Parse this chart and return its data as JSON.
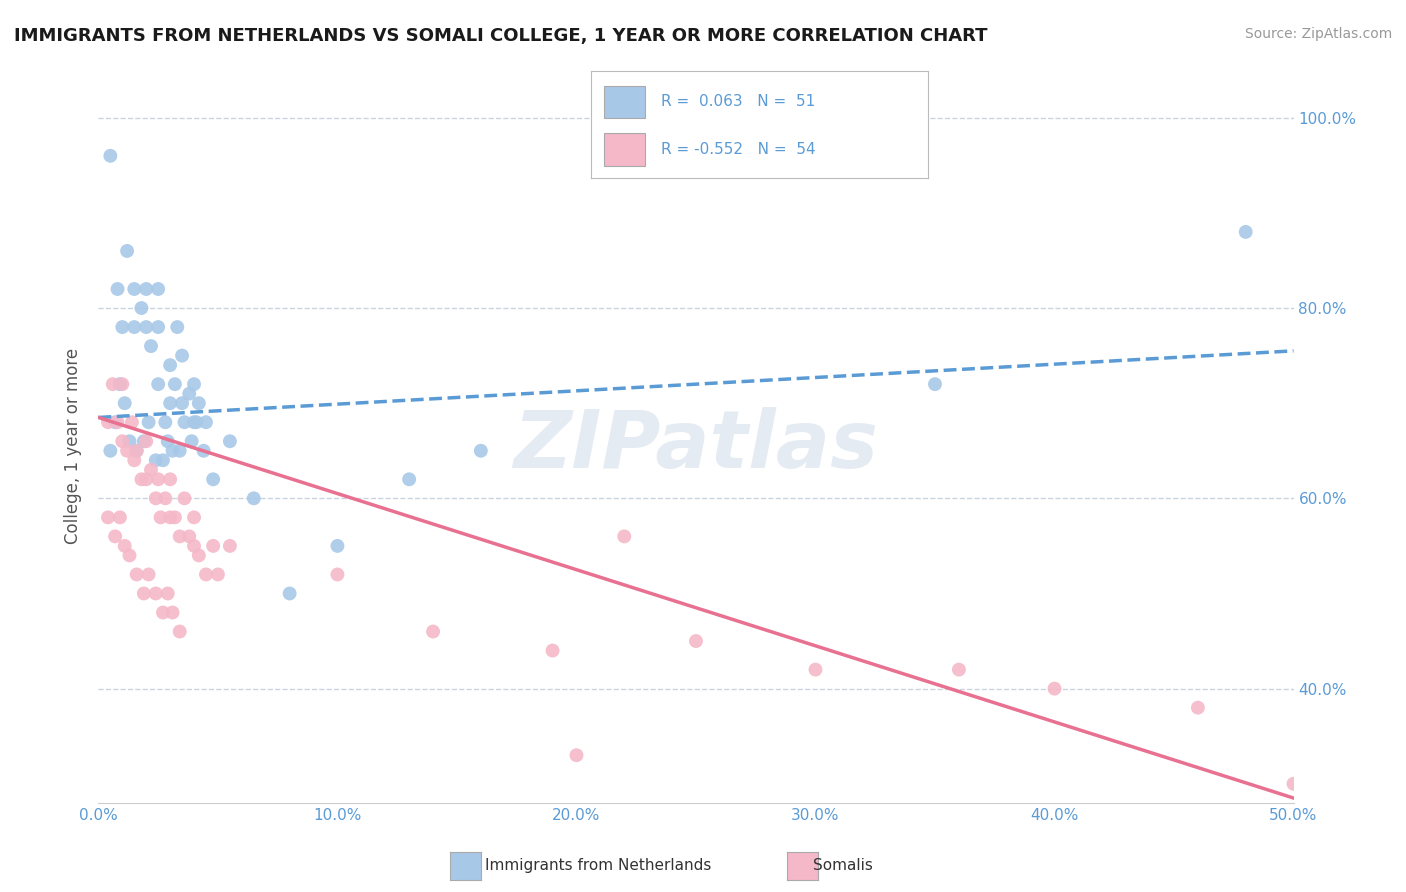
{
  "title": "IMMIGRANTS FROM NETHERLANDS VS SOMALI COLLEGE, 1 YEAR OR MORE CORRELATION CHART",
  "source": "Source: ZipAtlas.com",
  "ylabel": "College, 1 year or more",
  "xlim": [
    0.0,
    0.5
  ],
  "ylim": [
    0.28,
    1.03
  ],
  "xticks": [
    0.0,
    0.05,
    0.1,
    0.15,
    0.2,
    0.25,
    0.3,
    0.35,
    0.4,
    0.45,
    0.5
  ],
  "xticklabels": [
    "0.0%",
    "",
    "10.0%",
    "",
    "20.0%",
    "",
    "30.0%",
    "",
    "40.0%",
    "",
    "50.0%"
  ],
  "yticks_right": [
    0.4,
    0.6,
    0.8,
    1.0
  ],
  "yticklabels_right": [
    "40.0%",
    "60.0%",
    "80.0%",
    "100.0%"
  ],
  "color_netherlands": "#a8c8e8",
  "color_somali": "#f4b8c8",
  "color_line_netherlands": "#5b9bd5",
  "color_line_somali": "#e87090",
  "color_axis_text": "#5b9bd5",
  "color_grid": "#c8d4e0",
  "color_title": "#1a1a1a",
  "watermark": "ZIPatlas",
  "nl_R": 0.063,
  "nl_N": 51,
  "so_R": -0.552,
  "so_N": 54,
  "nl_line_x0": 0.0,
  "nl_line_y0": 0.685,
  "nl_line_x1": 0.5,
  "nl_line_y1": 0.755,
  "so_line_x0": 0.0,
  "so_line_y0": 0.685,
  "so_line_x1": 0.5,
  "so_line_y1": 0.285,
  "netherlands_x": [
    0.005,
    0.008,
    0.01,
    0.012,
    0.015,
    0.015,
    0.018,
    0.02,
    0.02,
    0.022,
    0.025,
    0.025,
    0.025,
    0.028,
    0.03,
    0.03,
    0.032,
    0.033,
    0.035,
    0.035,
    0.038,
    0.04,
    0.04,
    0.042,
    0.045,
    0.005,
    0.007,
    0.009,
    0.011,
    0.013,
    0.016,
    0.019,
    0.021,
    0.024,
    0.027,
    0.029,
    0.031,
    0.034,
    0.036,
    0.039,
    0.041,
    0.044,
    0.048,
    0.055,
    0.065,
    0.08,
    0.1,
    0.13,
    0.16,
    0.35,
    0.48
  ],
  "netherlands_y": [
    0.96,
    0.82,
    0.78,
    0.86,
    0.82,
    0.78,
    0.8,
    0.78,
    0.82,
    0.76,
    0.72,
    0.78,
    0.82,
    0.68,
    0.7,
    0.74,
    0.72,
    0.78,
    0.7,
    0.75,
    0.71,
    0.68,
    0.72,
    0.7,
    0.68,
    0.65,
    0.68,
    0.72,
    0.7,
    0.66,
    0.65,
    0.66,
    0.68,
    0.64,
    0.64,
    0.66,
    0.65,
    0.65,
    0.68,
    0.66,
    0.68,
    0.65,
    0.62,
    0.66,
    0.6,
    0.5,
    0.55,
    0.62,
    0.65,
    0.72,
    0.88
  ],
  "somali_x": [
    0.004,
    0.006,
    0.008,
    0.01,
    0.01,
    0.012,
    0.014,
    0.015,
    0.016,
    0.018,
    0.02,
    0.02,
    0.022,
    0.024,
    0.025,
    0.026,
    0.028,
    0.03,
    0.03,
    0.032,
    0.034,
    0.036,
    0.038,
    0.04,
    0.04,
    0.042,
    0.045,
    0.048,
    0.05,
    0.055,
    0.004,
    0.007,
    0.009,
    0.011,
    0.013,
    0.016,
    0.019,
    0.021,
    0.024,
    0.027,
    0.029,
    0.031,
    0.034,
    0.1,
    0.14,
    0.19,
    0.22,
    0.25,
    0.3,
    0.36,
    0.4,
    0.46,
    0.2,
    0.5
  ],
  "somali_y": [
    0.68,
    0.72,
    0.68,
    0.72,
    0.66,
    0.65,
    0.68,
    0.64,
    0.65,
    0.62,
    0.62,
    0.66,
    0.63,
    0.6,
    0.62,
    0.58,
    0.6,
    0.58,
    0.62,
    0.58,
    0.56,
    0.6,
    0.56,
    0.55,
    0.58,
    0.54,
    0.52,
    0.55,
    0.52,
    0.55,
    0.58,
    0.56,
    0.58,
    0.55,
    0.54,
    0.52,
    0.5,
    0.52,
    0.5,
    0.48,
    0.5,
    0.48,
    0.46,
    0.52,
    0.46,
    0.44,
    0.56,
    0.45,
    0.42,
    0.42,
    0.4,
    0.38,
    0.33,
    0.3
  ]
}
